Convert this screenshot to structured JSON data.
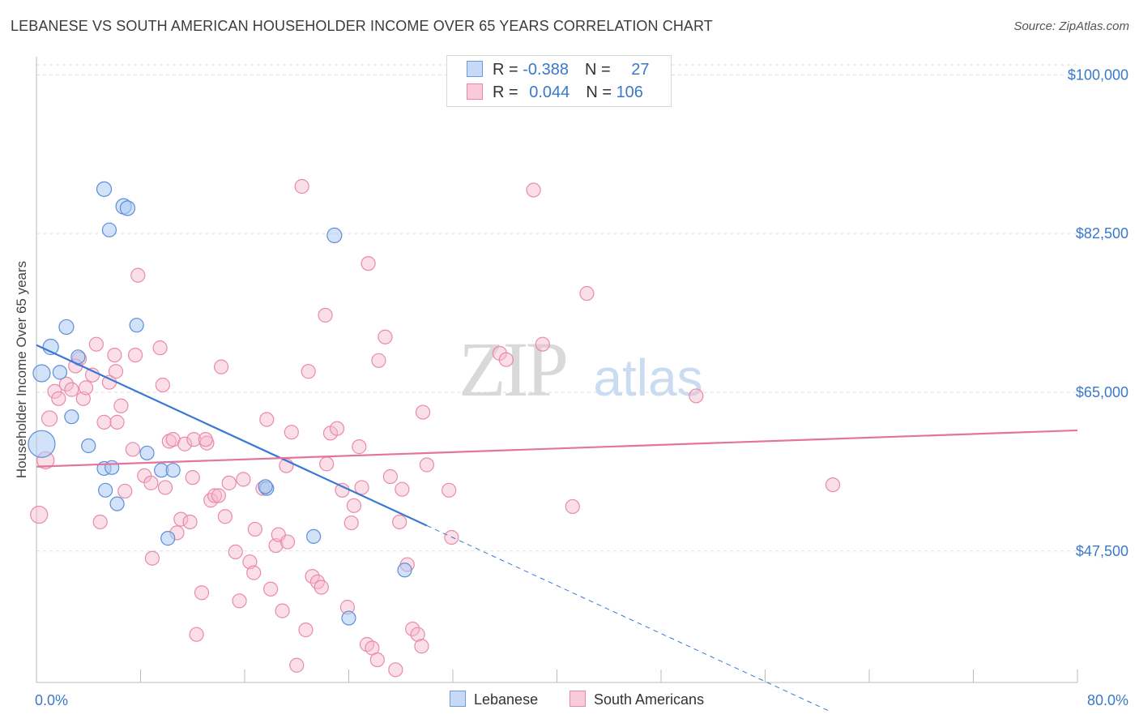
{
  "title": "LEBANESE VS SOUTH AMERICAN HOUSEHOLDER INCOME OVER 65 YEARS CORRELATION CHART",
  "source": "Source: ZipAtlas.com",
  "watermark": {
    "zip": "ZIP",
    "atlas": "atlas"
  },
  "legend_top": {
    "rows": [
      {
        "r_label": "R = ",
        "r_value": "-0.388",
        "n_label": "N = ",
        "n_value": "27",
        "fill": "#c6d9f5",
        "stroke": "#6d9be0"
      },
      {
        "r_label": "R = ",
        "r_value": "0.044",
        "n_label": "N = ",
        "n_value": "106",
        "fill": "#f9cad8",
        "stroke": "#e687a7"
      }
    ]
  },
  "legend_bottom": [
    {
      "label": "Lebanese",
      "fill": "#c6d9f5",
      "stroke": "#6d9be0"
    },
    {
      "label": "South Americans",
      "fill": "#f9cad8",
      "stroke": "#e687a7"
    }
  ],
  "colors": {
    "lebanese_fill": "rgba(173,203,242,0.55)",
    "lebanese_stroke": "#5b8fd9",
    "lebanese_line": "#3a78d6",
    "south_fill": "rgba(247,183,203,0.45)",
    "south_stroke": "#e98aab",
    "south_line": "#e3749b",
    "tick_text": "#3a78c9",
    "grid": "#dddddd"
  },
  "chart_data": {
    "type": "scatter",
    "title": "LEBANESE VS SOUTH AMERICAN HOUSEHOLDER INCOME OVER 65 YEARS CORRELATION CHART",
    "ylabel": "Householder Income Over 65 years",
    "xlabel": "",
    "xlim": [
      0,
      80
    ],
    "ylim": [
      33000,
      102000
    ],
    "x_tick_labels": [
      {
        "value": 0,
        "label": "0.0%"
      },
      {
        "value": 80,
        "label": "80.0%"
      }
    ],
    "y_ticks": [
      {
        "value": 100000,
        "label": "$100,000"
      },
      {
        "value": 82500,
        "label": "$82,500"
      },
      {
        "value": 65000,
        "label": "$65,000"
      },
      {
        "value": 47500,
        "label": "$47,500"
      }
    ],
    "grid": true,
    "series": [
      {
        "name": "Lebanese",
        "R": -0.388,
        "N": 27,
        "trend": {
          "x0": 0,
          "y0": 70200,
          "x1": 30,
          "y1": 50300,
          "dash_to_x": 61,
          "dash_to_y": 29800
        },
        "points": [
          [
            0.4,
            59300,
            30
          ],
          [
            1.1,
            70000,
            16
          ],
          [
            0.4,
            67100,
            18
          ],
          [
            1.8,
            67200,
            14
          ],
          [
            2.3,
            72200,
            15
          ],
          [
            2.7,
            62300,
            14
          ],
          [
            3.2,
            68900,
            14
          ],
          [
            4.0,
            59100,
            14
          ],
          [
            5.2,
            87400,
            15
          ],
          [
            5.6,
            82900,
            14
          ],
          [
            6.7,
            85500,
            16
          ],
          [
            7.0,
            85300,
            15
          ],
          [
            5.2,
            56600,
            14
          ],
          [
            5.3,
            54200,
            14
          ],
          [
            5.8,
            56700,
            14
          ],
          [
            6.2,
            52700,
            14
          ],
          [
            7.7,
            72400,
            14
          ],
          [
            8.5,
            58300,
            14
          ],
          [
            9.6,
            56400,
            14
          ],
          [
            10.1,
            48900,
            14
          ],
          [
            17.7,
            54400,
            14
          ],
          [
            22.9,
            82300,
            15
          ],
          [
            21.3,
            49100,
            14
          ],
          [
            24.0,
            40100,
            14
          ],
          [
            28.3,
            45400,
            14
          ],
          [
            17.6,
            54600,
            14
          ],
          [
            10.5,
            56400,
            14
          ]
        ]
      },
      {
        "name": "South Americans",
        "R": 0.044,
        "N": 106,
        "trend": {
          "x0": 0,
          "y0": 56800,
          "x1": 80,
          "y1": 60800
        },
        "points": [
          [
            0.2,
            51500,
            18
          ],
          [
            0.7,
            57500,
            18
          ],
          [
            1.0,
            62100,
            16
          ],
          [
            1.4,
            65100,
            14
          ],
          [
            1.7,
            64300,
            14
          ],
          [
            2.3,
            65900,
            14
          ],
          [
            2.7,
            65300,
            14
          ],
          [
            3.3,
            68700,
            14
          ],
          [
            3.6,
            64300,
            14
          ],
          [
            3.8,
            65500,
            14
          ],
          [
            4.3,
            66900,
            14
          ],
          [
            4.6,
            70300,
            14
          ],
          [
            4.9,
            50700,
            14
          ],
          [
            5.2,
            61700,
            14
          ],
          [
            5.6,
            66100,
            14
          ],
          [
            6.0,
            69100,
            14
          ],
          [
            6.1,
            67300,
            14
          ],
          [
            6.2,
            61700,
            14
          ],
          [
            6.5,
            63500,
            14
          ],
          [
            6.8,
            54100,
            14
          ],
          [
            7.4,
            58700,
            14
          ],
          [
            7.6,
            69100,
            14
          ],
          [
            7.8,
            77900,
            14
          ],
          [
            8.3,
            55800,
            14
          ],
          [
            8.8,
            55000,
            14
          ],
          [
            8.9,
            46700,
            14
          ],
          [
            9.5,
            69900,
            14
          ],
          [
            9.7,
            65800,
            14
          ],
          [
            9.9,
            54500,
            14
          ],
          [
            10.2,
            59600,
            14
          ],
          [
            10.5,
            59800,
            14
          ],
          [
            10.8,
            49500,
            14
          ],
          [
            11.1,
            51000,
            14
          ],
          [
            11.4,
            59300,
            14
          ],
          [
            12.0,
            55600,
            14
          ],
          [
            12.1,
            59800,
            14
          ],
          [
            12.3,
            38300,
            14
          ],
          [
            12.7,
            42900,
            14
          ],
          [
            13.1,
            59400,
            14
          ],
          [
            13.4,
            53100,
            14
          ],
          [
            13.7,
            53600,
            14
          ],
          [
            14.0,
            53600,
            14
          ],
          [
            14.2,
            67800,
            14
          ],
          [
            14.5,
            51300,
            14
          ],
          [
            14.8,
            55000,
            14
          ],
          [
            15.3,
            47400,
            14
          ],
          [
            15.6,
            42000,
            14
          ],
          [
            15.9,
            55400,
            14
          ],
          [
            16.4,
            46300,
            14
          ],
          [
            16.7,
            45100,
            14
          ],
          [
            16.8,
            49900,
            14
          ],
          [
            17.4,
            54400,
            14
          ],
          [
            17.7,
            62000,
            14
          ],
          [
            18.0,
            43300,
            14
          ],
          [
            18.4,
            48100,
            14
          ],
          [
            18.6,
            49300,
            14
          ],
          [
            18.9,
            40900,
            14
          ],
          [
            19.3,
            48500,
            14
          ],
          [
            19.6,
            60600,
            14
          ],
          [
            20.0,
            34900,
            14
          ],
          [
            20.4,
            87700,
            14
          ],
          [
            20.7,
            38800,
            14
          ],
          [
            20.9,
            67300,
            14
          ],
          [
            21.2,
            44700,
            14
          ],
          [
            21.6,
            44100,
            14
          ],
          [
            21.9,
            43500,
            14
          ],
          [
            22.3,
            57100,
            14
          ],
          [
            22.6,
            60500,
            14
          ],
          [
            22.2,
            73500,
            14
          ],
          [
            23.1,
            61000,
            14
          ],
          [
            23.5,
            54200,
            14
          ],
          [
            23.9,
            41300,
            14
          ],
          [
            24.2,
            50600,
            14
          ],
          [
            24.4,
            52500,
            14
          ],
          [
            25.0,
            54500,
            14
          ],
          [
            25.4,
            37200,
            14
          ],
          [
            25.8,
            36800,
            14
          ],
          [
            26.2,
            35500,
            14
          ],
          [
            25.5,
            79200,
            14
          ],
          [
            26.3,
            68500,
            14
          ],
          [
            26.8,
            71100,
            14
          ],
          [
            27.2,
            55700,
            14
          ],
          [
            27.6,
            34400,
            14
          ],
          [
            27.9,
            50700,
            14
          ],
          [
            28.1,
            54300,
            14
          ],
          [
            28.5,
            46000,
            14
          ],
          [
            28.9,
            38900,
            14
          ],
          [
            29.3,
            38300,
            14
          ],
          [
            29.6,
            37000,
            14
          ],
          [
            31.7,
            54200,
            14
          ],
          [
            31.9,
            49000,
            14
          ],
          [
            35.6,
            69300,
            14
          ],
          [
            36.1,
            68600,
            14
          ],
          [
            38.2,
            87300,
            14
          ],
          [
            38.9,
            70300,
            14
          ],
          [
            41.2,
            52400,
            14
          ],
          [
            42.3,
            75900,
            14
          ],
          [
            50.7,
            64600,
            14
          ],
          [
            61.2,
            54800,
            14
          ],
          [
            30.0,
            57000,
            14
          ],
          [
            29.7,
            62800,
            14
          ],
          [
            24.8,
            59000,
            14
          ],
          [
            13.0,
            59800,
            14
          ],
          [
            11.8,
            50700,
            14
          ],
          [
            19.2,
            56900,
            14
          ],
          [
            3.0,
            67900,
            14
          ]
        ]
      }
    ]
  }
}
